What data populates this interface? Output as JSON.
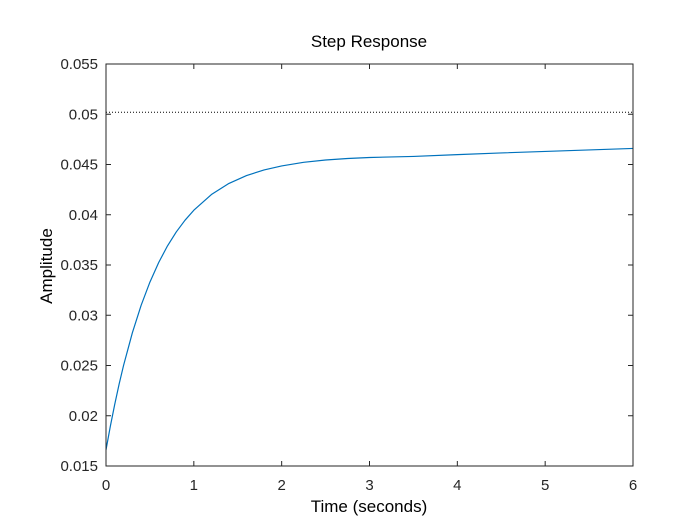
{
  "chart_data": {
    "type": "line",
    "title": "Step Response",
    "xlabel": "Time (seconds)",
    "ylabel": "Amplitude",
    "xlim": [
      0,
      6
    ],
    "ylim": [
      0.015,
      0.055
    ],
    "xticks": [
      0,
      1,
      2,
      3,
      4,
      5,
      6
    ],
    "yticks": [
      0.015,
      0.02,
      0.025,
      0.03,
      0.035,
      0.04,
      0.045,
      0.05,
      0.055
    ],
    "xtick_labels": [
      "0",
      "1",
      "2",
      "3",
      "4",
      "5",
      "6"
    ],
    "ytick_labels": [
      "0.015",
      "0.02",
      "0.025",
      "0.03",
      "0.035",
      "0.04",
      "0.045",
      "0.05",
      "0.055"
    ],
    "grid": false,
    "steady_state": 0.0502,
    "series": [
      {
        "x": [
          0,
          0.05,
          0.1,
          0.15,
          0.2,
          0.3,
          0.4,
          0.5,
          0.6,
          0.7,
          0.8,
          0.9,
          1.0,
          1.2,
          1.4,
          1.6,
          1.8,
          2.0,
          2.25,
          2.5,
          2.75,
          3.0,
          3.5,
          4.0,
          4.5,
          5.0,
          5.5,
          6.0
        ],
        "y": [
          0.0166,
          0.01898,
          0.02116,
          0.02317,
          0.02501,
          0.02825,
          0.03099,
          0.0333,
          0.03525,
          0.0369,
          0.03829,
          0.03946,
          0.04045,
          0.04201,
          0.04312,
          0.0439,
          0.04446,
          0.04486,
          0.04522,
          0.04545,
          0.0456,
          0.0457,
          0.0458,
          0.04598,
          0.04615,
          0.0463,
          0.04645,
          0.0466
        ],
        "color": "#0072BD"
      }
    ],
    "steady_state_line_color": "#000000",
    "steady_state_line_style": "dotted"
  }
}
